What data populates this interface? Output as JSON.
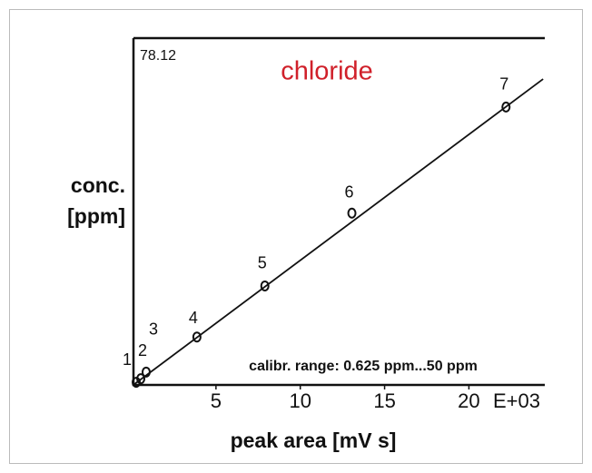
{
  "chart_data": {
    "type": "scatter",
    "title": "chloride",
    "title_color": "#d0202a",
    "x_label": "peak area [mV s]",
    "x_exponent_label": "E+03",
    "y_label": [
      "conc.",
      "[ppm]"
    ],
    "annotation": "calibr. range: 0.625 ppm...50 ppm",
    "x": [
      0.27,
      0.54,
      0.86,
      3.87,
      7.9,
      13.06,
      22.2
    ],
    "values": [
      0.6,
      1.4,
      2.9,
      10.8,
      22.3,
      38.7,
      62.6
    ],
    "point_labels": [
      "1",
      "2",
      "3",
      "4",
      "5",
      "6",
      "7"
    ],
    "fit_line": {
      "x": [
        0.1,
        24.4
      ],
      "y": [
        0,
        68.9
      ]
    },
    "color": "#111111",
    "xlim": [
      0,
      24.5
    ],
    "xticks": [
      5,
      10,
      15,
      20
    ],
    "ylim": [
      0,
      78.12
    ],
    "yticks": [
      78.12
    ]
  }
}
